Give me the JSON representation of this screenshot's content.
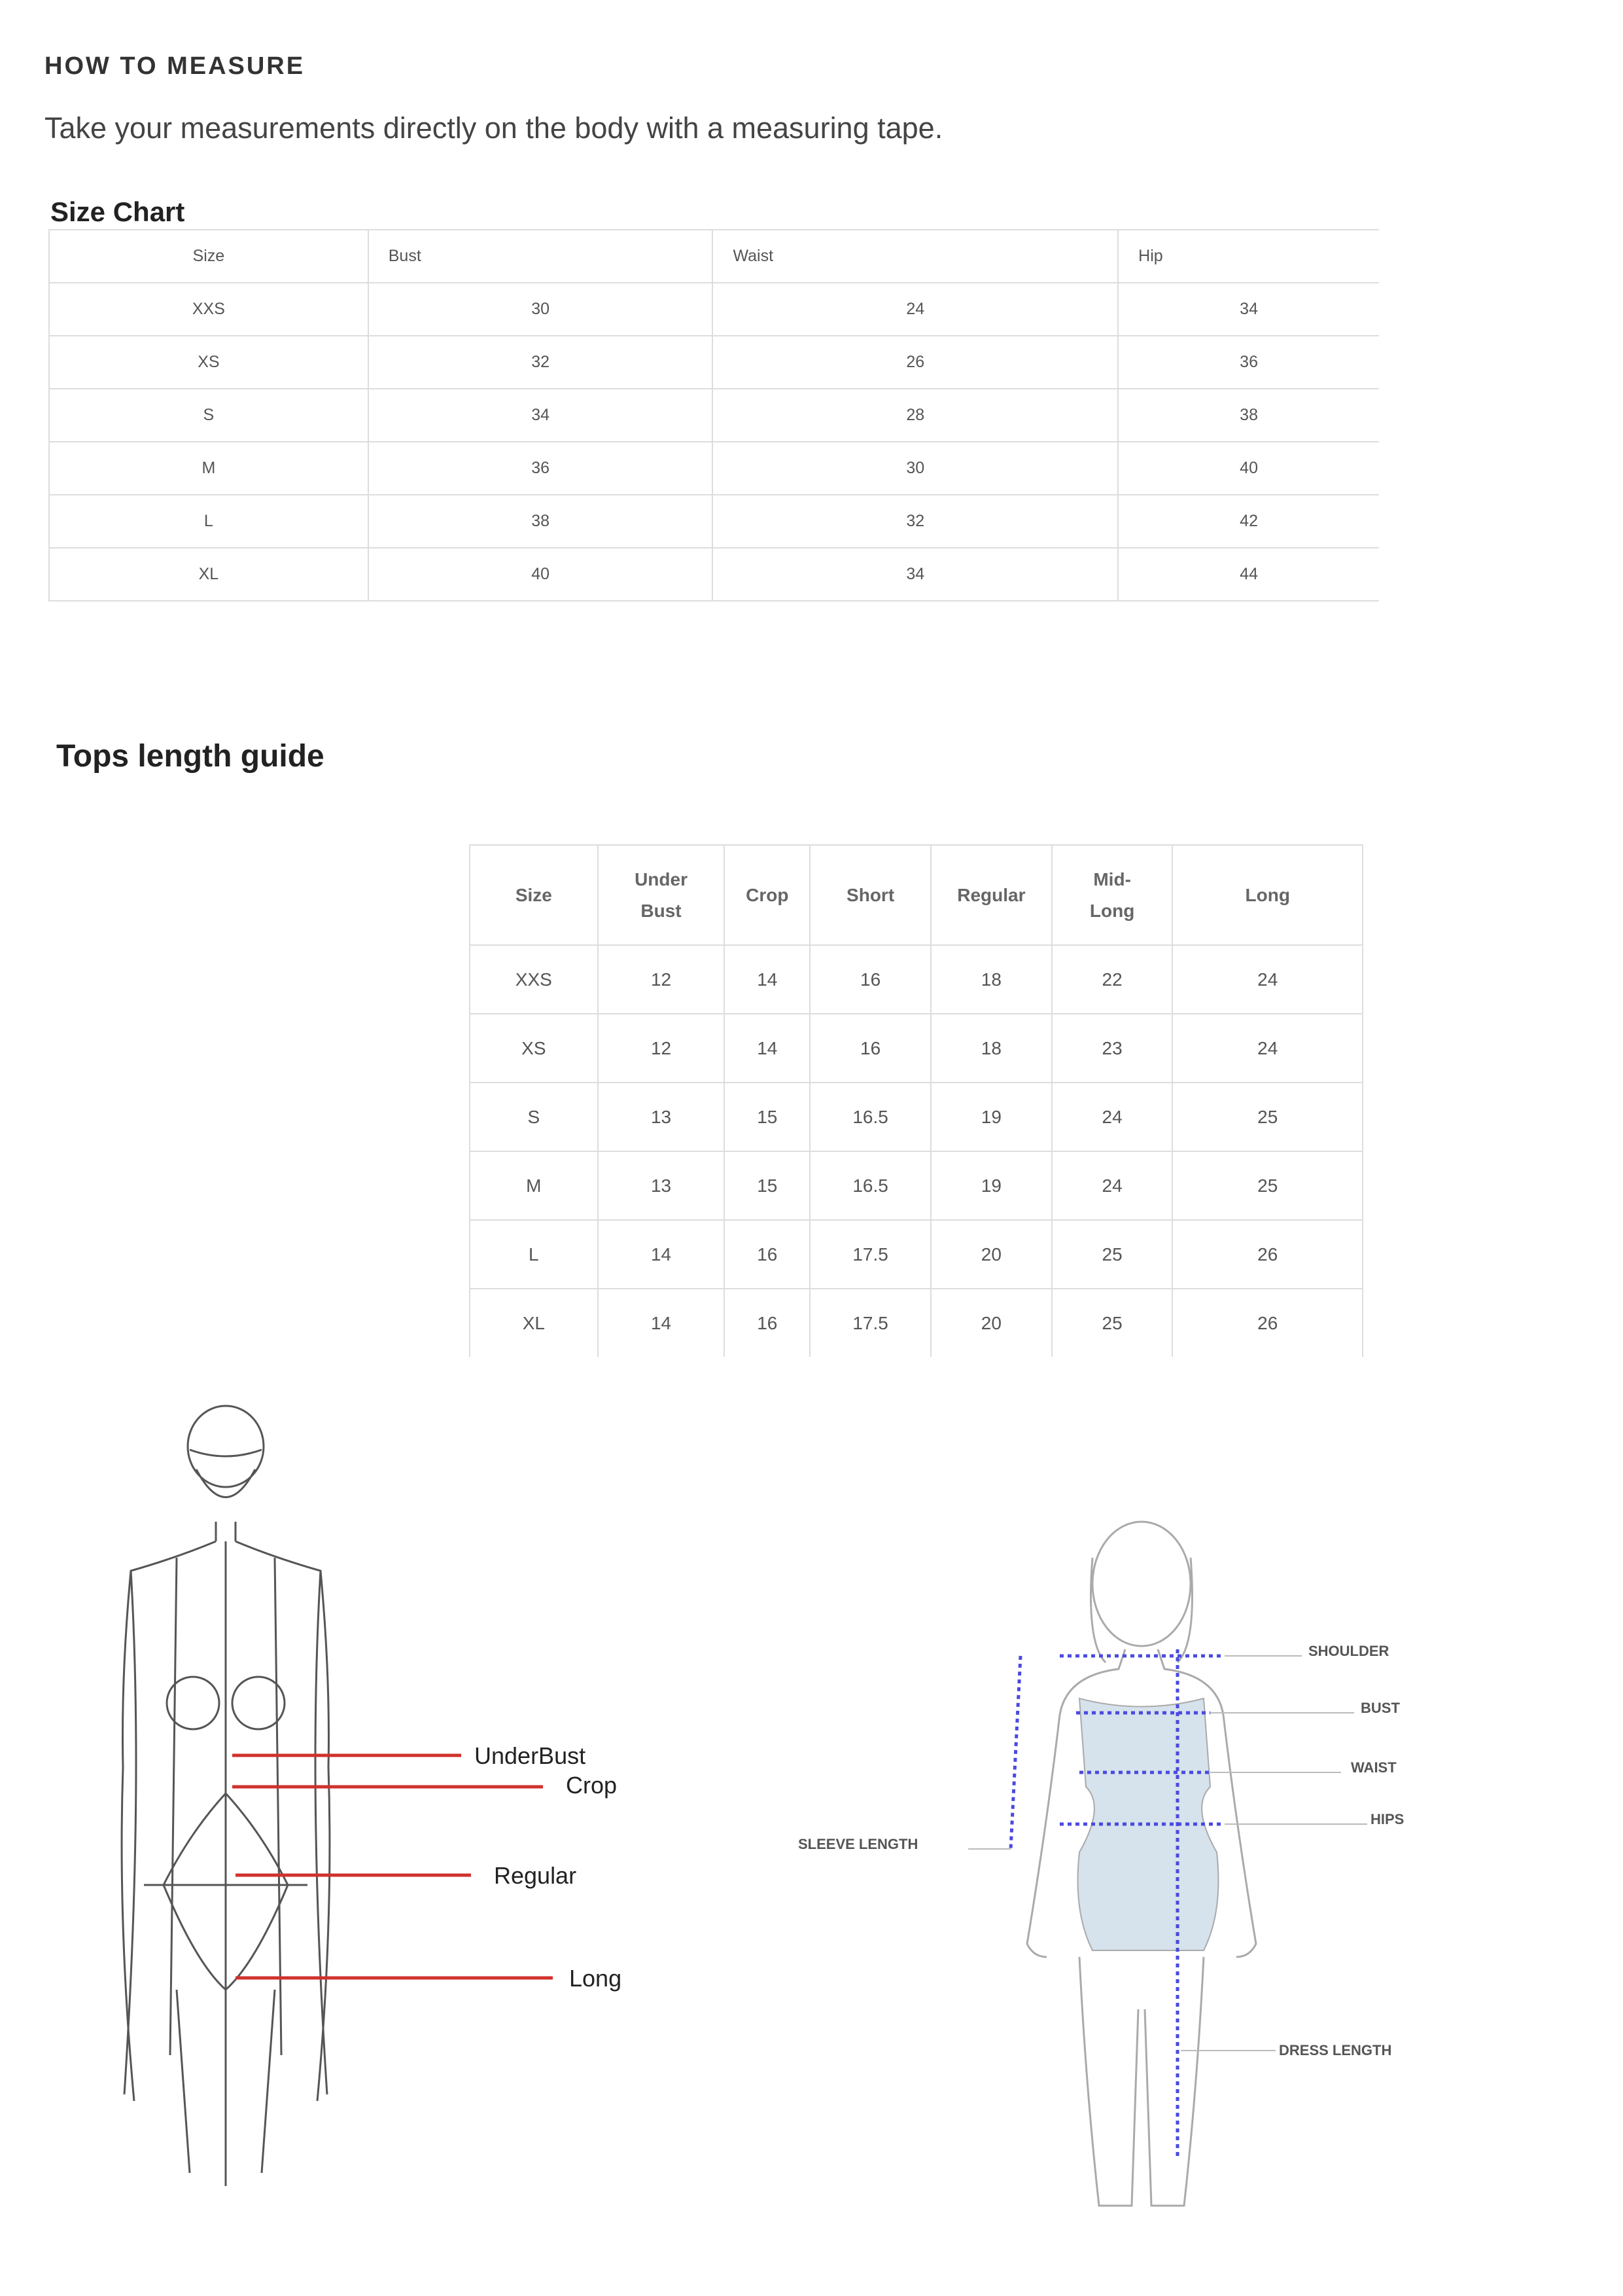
{
  "heading": "HOW TO MEASURE",
  "subheading": "Take your measurements directly on the body with a measuring tape.",
  "size_chart": {
    "title": "Size Chart",
    "headers": [
      "Size",
      "Bust",
      "Waist",
      "Hip"
    ],
    "rows": [
      [
        "XXS",
        "30",
        "24",
        "34"
      ],
      [
        "XS",
        "32",
        "26",
        "36"
      ],
      [
        "S",
        "34",
        "28",
        "38"
      ],
      [
        "M",
        "36",
        "30",
        "40"
      ],
      [
        "L",
        "38",
        "32",
        "42"
      ],
      [
        "XL",
        "40",
        "34",
        "44"
      ]
    ]
  },
  "tops_guide": {
    "title": "Tops length guide",
    "headers": [
      [
        "Size"
      ],
      [
        "Under",
        "Bust"
      ],
      [
        "Crop"
      ],
      [
        "Short"
      ],
      [
        "Regular"
      ],
      [
        "Mid-",
        "Long"
      ],
      [
        "Long"
      ]
    ],
    "rows": [
      [
        "XXS",
        "12",
        "14",
        "16",
        "18",
        "22",
        "24"
      ],
      [
        "XS",
        "12",
        "14",
        "16",
        "18",
        "23",
        "24"
      ],
      [
        "S",
        "13",
        "15",
        "16.5",
        "19",
        "24",
        "25"
      ],
      [
        "M",
        "13",
        "15",
        "16.5",
        "19",
        "24",
        "25"
      ],
      [
        "L",
        "14",
        "16",
        "17.5",
        "20",
        "25",
        "26"
      ],
      [
        "XL",
        "14",
        "16",
        "17.5",
        "20",
        "25",
        "26"
      ]
    ]
  },
  "tops_figure": {
    "labels": {
      "underbust": "UnderBust",
      "crop": "Crop",
      "regular": "Regular",
      "long": "Long"
    },
    "line_color": "#d0312d"
  },
  "dress_figure": {
    "labels": {
      "shoulder": "SHOULDER",
      "bust": "BUST",
      "waist": "WAIST",
      "hips": "HIPS",
      "sleeve": "SLEEVE LENGTH",
      "dress_length": "DRESS LENGTH"
    },
    "dress_color": "#d6e2ec",
    "measure_color": "#4a4ae0"
  }
}
